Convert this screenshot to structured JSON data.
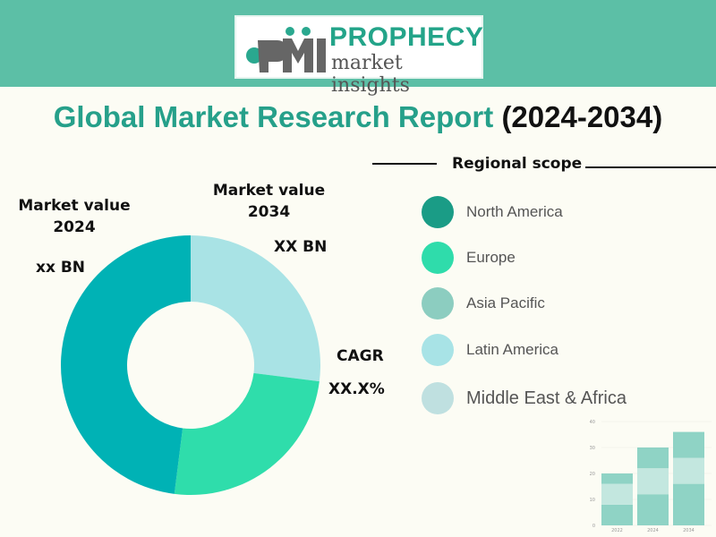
{
  "logo": {
    "brand": "PMI",
    "line1": "PROPHECY",
    "line2": "market insights"
  },
  "title": {
    "part1": "Global Market Research Report",
    "part2": "(2024-2034)"
  },
  "labels": {
    "mv2024_title": "Market value",
    "mv2024_year": "2024",
    "mv2024_value": "xx BN",
    "mv2034_title": "Market value",
    "mv2034_year": "2034",
    "mv2034_value": "XX BN",
    "cagr_title": "CAGR",
    "cagr_value": "XX.X%"
  },
  "legend": {
    "title": "Regional scope",
    "items": [
      {
        "label": "North America",
        "color": "#1a9c86"
      },
      {
        "label": "Europe",
        "color": "#2fdcab"
      },
      {
        "label": "Asia Pacific",
        "color": "#8ccdc0"
      },
      {
        "label": "Latin America",
        "color": "#a8e3e6"
      },
      {
        "label": "Middle East & Africa",
        "color": "#bfe0e0"
      }
    ]
  },
  "chart_data": [
    {
      "type": "pie",
      "style": "donut",
      "values": [
        27,
        25,
        48
      ],
      "colors": [
        "#a9e3e5",
        "#2fddab",
        "#00b2b5"
      ]
    },
    {
      "type": "bar",
      "stacked": true,
      "categories": [
        "2022",
        "2024",
        "2034"
      ],
      "ylim": [
        0,
        40
      ],
      "yticks": [
        0,
        10,
        20,
        30,
        40
      ],
      "grid": true,
      "series": [
        {
          "values": [
            8,
            12,
            16
          ],
          "color": "#8fd3c5"
        },
        {
          "values": [
            8,
            10,
            10
          ],
          "color": "#c3e7df"
        },
        {
          "values": [
            4,
            8,
            10
          ],
          "color": "#8fd3c5"
        }
      ]
    }
  ]
}
